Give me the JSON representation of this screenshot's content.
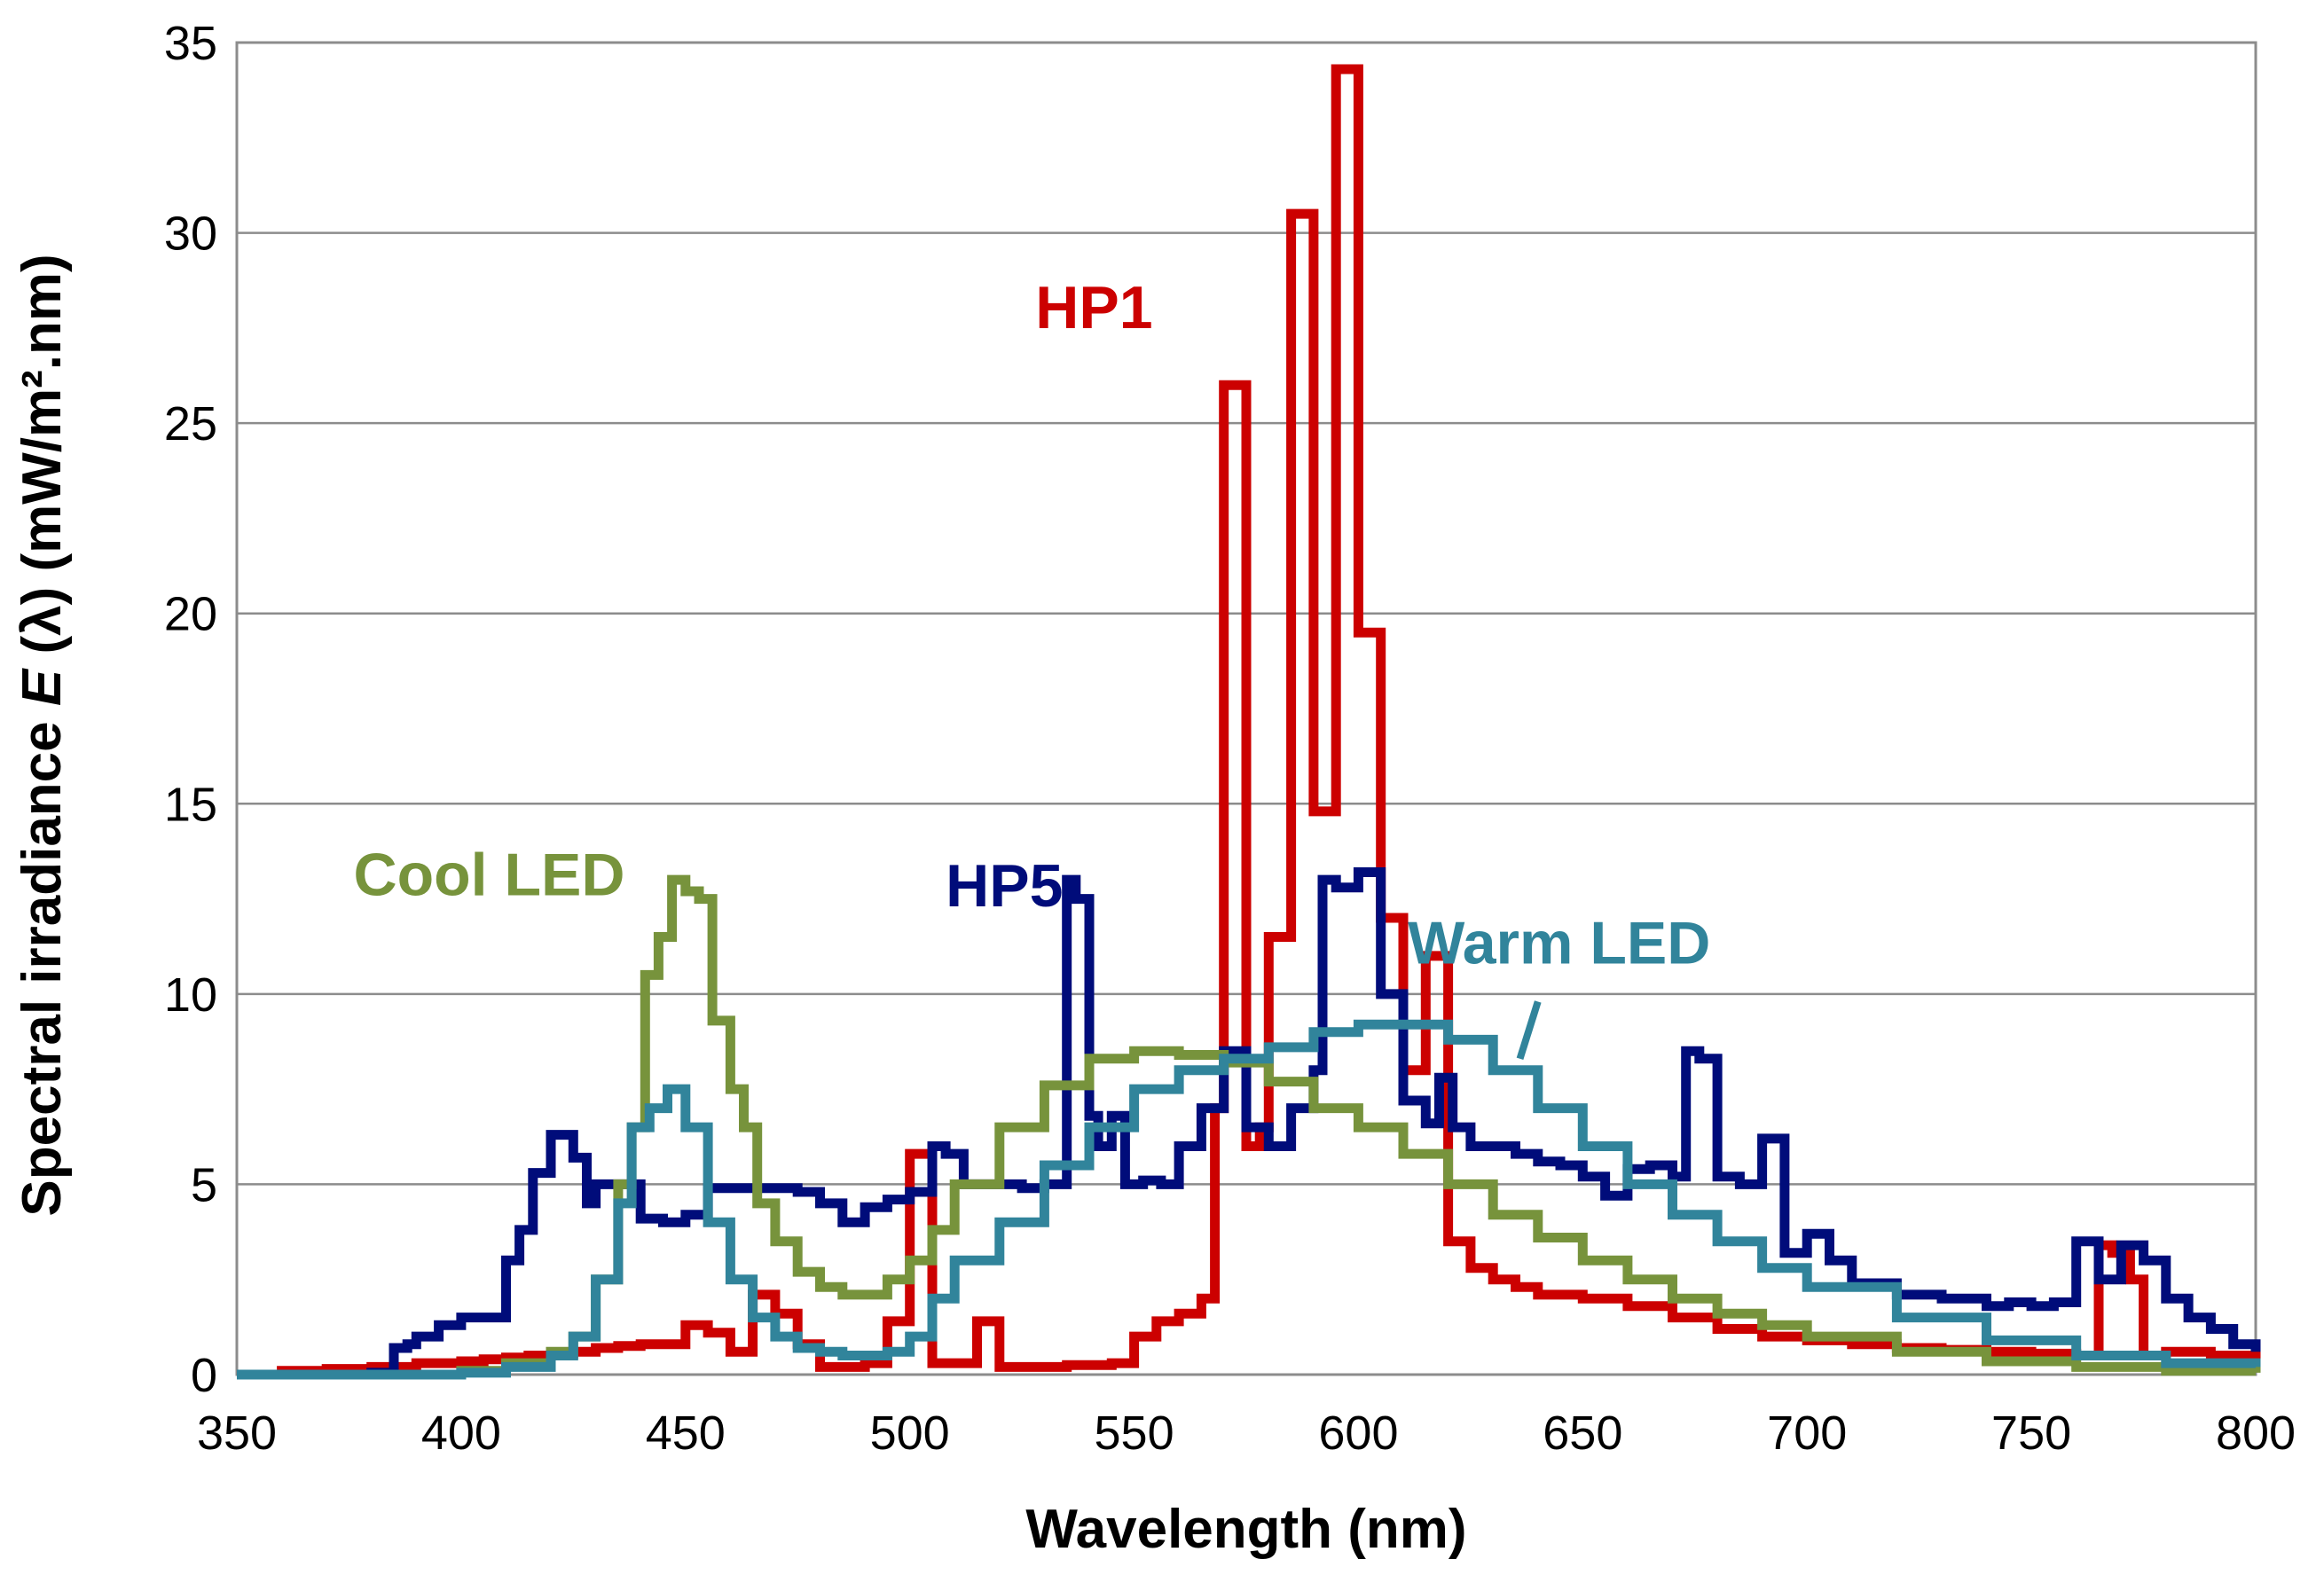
{
  "chart_data": {
    "type": "line",
    "title": "",
    "xlabel": "Wavelength (nm)",
    "ylabel": {
      "prefix": "Spectral irradiance ",
      "italic": "E",
      "suffix": " (λ) (mW/m².nm)"
    },
    "xlim": [
      350,
      800
    ],
    "ylim": [
      0,
      35
    ],
    "xticks": [
      350,
      400,
      450,
      500,
      550,
      600,
      650,
      700,
      750,
      800
    ],
    "yticks": [
      0,
      5,
      10,
      15,
      20,
      25,
      30,
      35
    ],
    "grid": true,
    "legend": "inline labels",
    "series": [
      {
        "name": "HP1",
        "color": "#cc0000",
        "label_anchor": [
          528,
          27.5
        ],
        "x": [
          350,
          360,
          370,
          380,
          390,
          400,
          405,
          410,
          415,
          420,
          425,
          430,
          435,
          440,
          445,
          450,
          455,
          460,
          465,
          470,
          475,
          480,
          485,
          490,
          495,
          500,
          505,
          510,
          515,
          520,
          525,
          530,
          535,
          540,
          545,
          550,
          555,
          560,
          565,
          568,
          570,
          575,
          578,
          580,
          585,
          590,
          595,
          600,
          605,
          610,
          615,
          620,
          625,
          630,
          635,
          640,
          650,
          660,
          670,
          680,
          690,
          700,
          710,
          720,
          730,
          740,
          750,
          760,
          765,
          768,
          772,
          775,
          780,
          790,
          800
        ],
        "y": [
          0,
          0.1,
          0.15,
          0.2,
          0.3,
          0.35,
          0.4,
          0.45,
          0.5,
          0.55,
          0.6,
          0.7,
          0.75,
          0.8,
          0.8,
          1.3,
          1.1,
          0.6,
          2.1,
          1.6,
          0.8,
          0.2,
          0.2,
          0.3,
          1.4,
          5.8,
          0.3,
          0.3,
          1.4,
          0.2,
          0.2,
          0.2,
          0.25,
          0.25,
          0.3,
          1.0,
          1.4,
          1.6,
          2.0,
          7.0,
          26.0,
          6.0,
          6.5,
          11.5,
          30.5,
          14.8,
          34.3,
          19.5,
          12.0,
          8.0,
          11.0,
          3.5,
          2.8,
          2.5,
          2.3,
          2.1,
          2.0,
          1.8,
          1.5,
          1.2,
          1.0,
          0.9,
          0.8,
          0.7,
          0.65,
          0.6,
          0.55,
          0.5,
          3.4,
          3.2,
          2.5,
          0.5,
          0.6,
          0.5,
          0.4
        ]
      },
      {
        "name": "HP5",
        "color": "#000c7a",
        "label_anchor": [
          508,
          12.3
        ],
        "x": [
          350,
          380,
          385,
          388,
          390,
          395,
          400,
          405,
          410,
          413,
          416,
          420,
          425,
          428,
          430,
          435,
          440,
          445,
          450,
          455,
          460,
          465,
          470,
          475,
          480,
          485,
          490,
          495,
          500,
          505,
          508,
          512,
          515,
          520,
          525,
          530,
          535,
          537,
          540,
          542,
          545,
          548,
          552,
          556,
          560,
          565,
          570,
          575,
          580,
          585,
          590,
          592,
          595,
          600,
          605,
          610,
          615,
          618,
          621,
          625,
          630,
          635,
          640,
          645,
          650,
          655,
          660,
          665,
          670,
          673,
          676,
          680,
          685,
          690,
          695,
          700,
          705,
          710,
          720,
          730,
          740,
          745,
          750,
          755,
          760,
          765,
          770,
          775,
          780,
          785,
          790,
          795,
          800
        ],
        "y": [
          0,
          0.05,
          0.7,
          0.8,
          1.0,
          1.3,
          1.5,
          1.5,
          3.0,
          3.8,
          5.3,
          6.3,
          5.7,
          4.5,
          5.0,
          5.0,
          4.1,
          4.0,
          4.2,
          4.9,
          4.9,
          4.9,
          4.9,
          4.8,
          4.5,
          4.0,
          4.4,
          4.6,
          4.8,
          6.0,
          5.8,
          5.0,
          5.0,
          5.0,
          4.9,
          5.0,
          13.0,
          12.5,
          6.8,
          6.0,
          6.8,
          5.0,
          5.1,
          5.0,
          6.0,
          7.0,
          8.5,
          6.5,
          6.0,
          7.0,
          8.0,
          13.0,
          12.8,
          13.2,
          10.0,
          7.2,
          6.6,
          7.8,
          6.5,
          6.0,
          6.0,
          5.8,
          5.6,
          5.5,
          5.2,
          4.7,
          5.4,
          5.5,
          5.2,
          8.5,
          8.3,
          5.2,
          5.0,
          6.2,
          3.2,
          3.7,
          3.0,
          2.4,
          2.1,
          2.0,
          1.8,
          1.9,
          1.8,
          1.9,
          3.5,
          2.5,
          3.4,
          3.0,
          2.0,
          1.5,
          1.2,
          0.8,
          0.6
        ]
      },
      {
        "name": "Cool LED",
        "color": "#77933c",
        "label_anchor": [
          376,
          12.6
        ],
        "x": [
          350,
          400,
          410,
          420,
          425,
          430,
          435,
          438,
          441,
          444,
          447,
          450,
          453,
          456,
          460,
          463,
          466,
          470,
          475,
          480,
          485,
          490,
          495,
          500,
          505,
          510,
          520,
          530,
          540,
          550,
          560,
          570,
          580,
          590,
          600,
          610,
          620,
          630,
          640,
          650,
          660,
          670,
          680,
          690,
          700,
          720,
          740,
          760,
          780,
          800
        ],
        "y": [
          0,
          0.1,
          0.3,
          0.6,
          1.0,
          2.5,
          5.0,
          6.5,
          10.5,
          11.5,
          13.0,
          12.7,
          12.5,
          9.3,
          7.5,
          6.5,
          4.5,
          3.5,
          2.7,
          2.3,
          2.1,
          2.1,
          2.5,
          3.0,
          3.8,
          5.0,
          6.5,
          7.6,
          8.3,
          8.5,
          8.4,
          8.2,
          7.7,
          7.0,
          6.5,
          5.8,
          5.0,
          4.2,
          3.6,
          3.0,
          2.5,
          2.0,
          1.6,
          1.3,
          1.0,
          0.6,
          0.35,
          0.2,
          0.1,
          0.05
        ]
      },
      {
        "name": "Warm LED",
        "color": "#31849b",
        "label_anchor": [
          611,
          10.8
        ],
        "leader": [
          [
            640,
            9.8
          ],
          [
            636,
            8.3
          ]
        ],
        "x": [
          350,
          400,
          410,
          420,
          425,
          430,
          435,
          438,
          442,
          446,
          450,
          455,
          460,
          465,
          470,
          475,
          480,
          485,
          490,
          495,
          500,
          505,
          510,
          520,
          530,
          540,
          550,
          560,
          570,
          580,
          590,
          600,
          610,
          620,
          630,
          640,
          650,
          660,
          670,
          680,
          690,
          700,
          720,
          740,
          760,
          780,
          800
        ],
        "y": [
          0,
          0.05,
          0.2,
          0.5,
          1.0,
          2.5,
          4.5,
          6.5,
          7.0,
          7.5,
          6.5,
          4.0,
          2.5,
          1.5,
          1.0,
          0.7,
          0.6,
          0.5,
          0.5,
          0.6,
          1.0,
          2.0,
          3.0,
          4.0,
          5.5,
          6.5,
          7.5,
          8.0,
          8.3,
          8.6,
          9.0,
          9.2,
          9.2,
          8.8,
          8.0,
          7.0,
          6.0,
          5.0,
          4.2,
          3.5,
          2.8,
          2.3,
          1.5,
          0.9,
          0.5,
          0.3,
          0.2
        ]
      }
    ]
  }
}
